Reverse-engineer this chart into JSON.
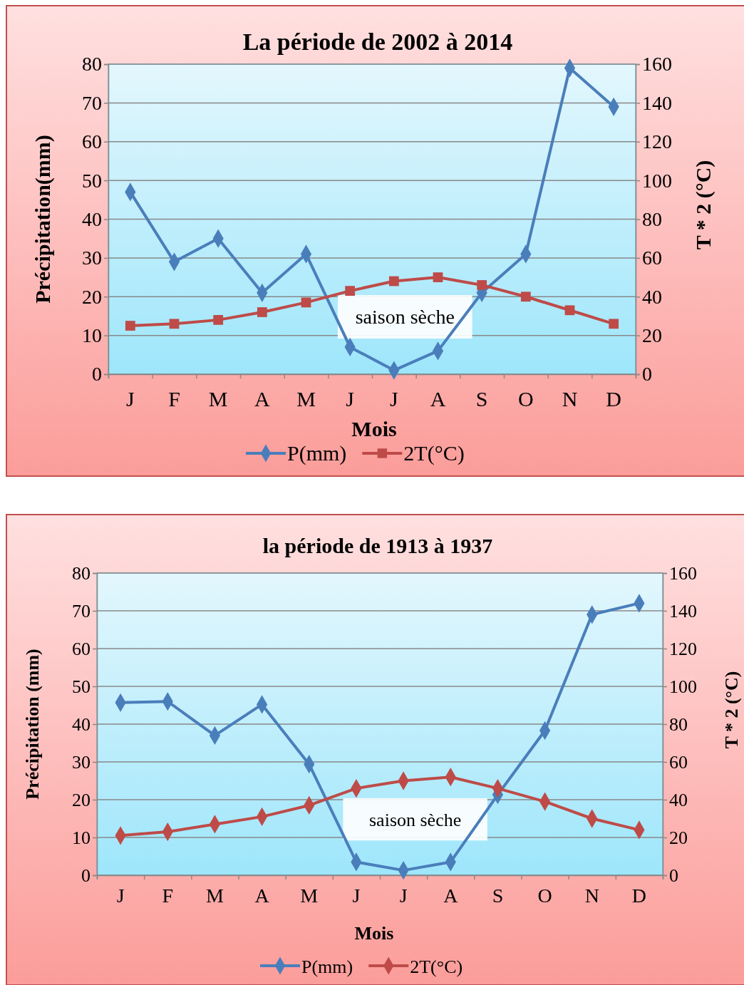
{
  "chart_data": [
    {
      "type": "line",
      "title": "La période de 2002 à 2014",
      "xlabel": "Mois",
      "ylabel": "Précipitation(mm)",
      "y2label": "T * 2 (°C)",
      "categories": [
        "J",
        "F",
        "M",
        "A",
        "M",
        "J",
        "J",
        "A",
        "S",
        "O",
        "N",
        "D"
      ],
      "series": [
        {
          "name": "P(mm)",
          "color": "#4a7ebb",
          "marker": "diamond",
          "values": [
            47,
            29,
            35,
            21,
            31,
            7,
            1,
            6,
            21,
            31,
            79,
            69
          ]
        },
        {
          "name": "2T(°C)",
          "color": "#be4b48",
          "marker": "square",
          "axis": "y2",
          "values": [
            25,
            26,
            28,
            32,
            37,
            43,
            48,
            50,
            46,
            40,
            33,
            26
          ]
        }
      ],
      "ylim": [
        0,
        80
      ],
      "yticks": [
        0,
        10,
        20,
        30,
        40,
        50,
        60,
        70,
        80
      ],
      "y2lim": [
        0,
        160
      ],
      "y2ticks": [
        0,
        20,
        40,
        60,
        80,
        100,
        120,
        140,
        160
      ],
      "grid": "y",
      "legend": "bottom",
      "annotations": [
        "saison sèche"
      ]
    },
    {
      "type": "line",
      "title": "la période de 1913 à 1937",
      "xlabel": "Mois",
      "ylabel": "Précipitation (mm)",
      "y2label": "T * 2 (°C)",
      "categories": [
        "J",
        "F",
        "M",
        "A",
        "M",
        "J",
        "J",
        "A",
        "S",
        "O",
        "N",
        "D"
      ],
      "series": [
        {
          "name": "P(mm)",
          "color": "#4a7ebb",
          "marker": "diamond",
          "values": [
            45.7,
            46,
            37,
            45.2,
            29.4,
            3.5,
            1.3,
            3.5,
            21.3,
            38.3,
            69,
            72
          ]
        },
        {
          "name": "2T(°C)",
          "color": "#be4b48",
          "marker": "diamond",
          "axis": "y2",
          "values": [
            21,
            23,
            27,
            31,
            37,
            46,
            50,
            52,
            46,
            39,
            30,
            24
          ]
        }
      ],
      "ylim": [
        0,
        80
      ],
      "yticks": [
        0,
        10,
        20,
        30,
        40,
        50,
        60,
        70,
        80
      ],
      "y2lim": [
        0,
        160
      ],
      "y2ticks": [
        0,
        20,
        40,
        60,
        80,
        100,
        120,
        140,
        160
      ],
      "grid": "y",
      "legend": "bottom",
      "annotations": [
        "saison sèche"
      ]
    }
  ]
}
